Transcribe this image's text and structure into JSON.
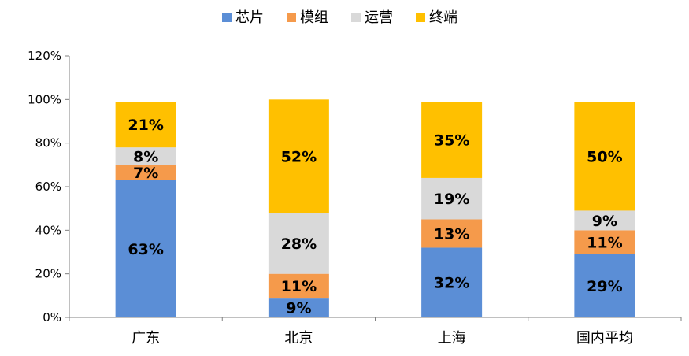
{
  "chart_data": {
    "type": "bar",
    "stacked": true,
    "categories": [
      "广东",
      "北京",
      "上海",
      "国内平均"
    ],
    "series": [
      {
        "name": "芯片",
        "values": [
          63,
          9,
          32,
          29
        ],
        "labels": [
          "63%",
          "9%",
          "32%",
          "29%"
        ],
        "color": "#5B8ED6"
      },
      {
        "name": "模组",
        "values": [
          7,
          11,
          13,
          11
        ],
        "labels": [
          "7%",
          "11%",
          "13%",
          "11%"
        ],
        "color": "#F59A4B"
      },
      {
        "name": "运营",
        "values": [
          8,
          28,
          19,
          9
        ],
        "labels": [
          "8%",
          "28%",
          "19%",
          "9%"
        ],
        "color": "#D9D9D9"
      },
      {
        "name": "终端",
        "values": [
          21,
          52,
          35,
          50
        ],
        "labels": [
          "21%",
          "52%",
          "35%",
          "50%"
        ],
        "color": "#FFC000"
      }
    ],
    "y_ticks": [
      "0%",
      "20%",
      "40%",
      "60%",
      "80%",
      "100%",
      "120%"
    ],
    "ylim": [
      0,
      120
    ],
    "grid": false,
    "legend_position": "top"
  }
}
